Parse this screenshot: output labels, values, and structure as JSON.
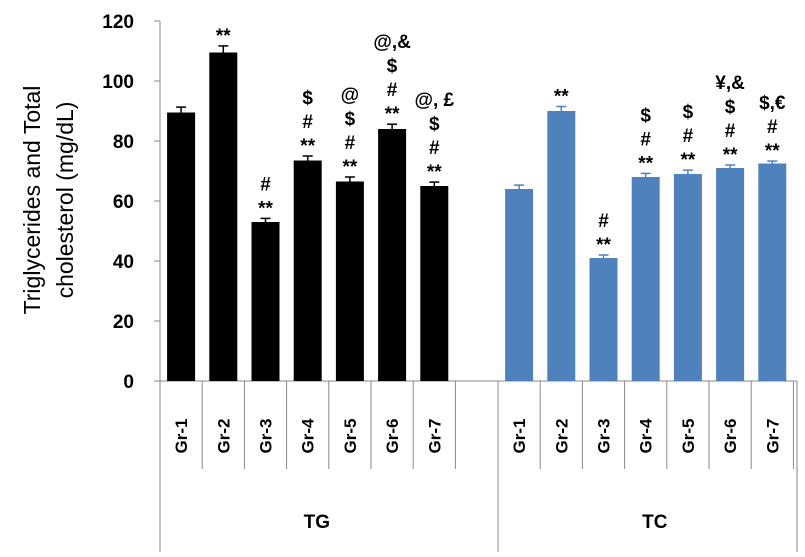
{
  "chart_data": {
    "type": "bar",
    "ylabel_lines": [
      "Triglycerides and Total",
      "cholesterol  (mg/dL)"
    ],
    "ylim": [
      0,
      120
    ],
    "yticks": [
      0,
      20,
      40,
      60,
      80,
      100,
      120
    ],
    "grid": false,
    "categories": [
      "Gr-1",
      "Gr-2",
      "Gr-3",
      "Gr-4",
      "Gr-5",
      "Gr-6",
      "Gr-7"
    ],
    "series": [
      {
        "name": "TG",
        "color": "#000000",
        "values": [
          89.5,
          109.5,
          53,
          73.5,
          66.5,
          84,
          65
        ],
        "errors": [
          1.8,
          2.2,
          1.2,
          1.5,
          1.5,
          1.6,
          1.3
        ],
        "annotations": [
          [],
          [
            "**"
          ],
          [
            "#",
            "**"
          ],
          [
            "$",
            "#",
            "**"
          ],
          [
            "@",
            "$",
            "#",
            "**"
          ],
          [
            "@,&",
            "$",
            "#",
            "**"
          ],
          [
            "@, £",
            "$",
            "#",
            "**"
          ]
        ]
      },
      {
        "name": "TC",
        "color": "#4f81bd",
        "values": [
          64,
          90,
          41,
          68,
          69,
          71,
          72.5
        ],
        "errors": [
          1.3,
          1.5,
          1.0,
          1.2,
          1.3,
          1.0,
          0.8
        ],
        "annotations": [
          [],
          [
            "**"
          ],
          [
            "#",
            "**"
          ],
          [
            "$",
            "#",
            "**"
          ],
          [
            "$",
            "#",
            "**"
          ],
          [
            "¥,&",
            "$",
            "#",
            "**"
          ],
          [
            "$,€",
            "#",
            "**"
          ]
        ]
      }
    ]
  }
}
